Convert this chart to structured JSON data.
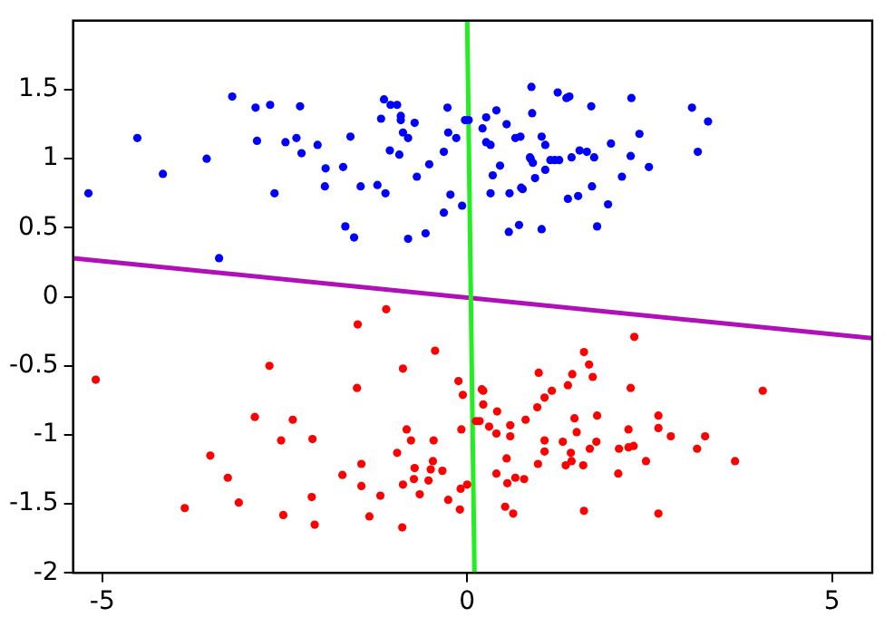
{
  "chart_data": {
    "type": "scatter",
    "xlim": [
      -5.4,
      5.55
    ],
    "ylim": [
      -2,
      2
    ],
    "xticks": [
      -5,
      0,
      5
    ],
    "yticks": [
      -2,
      -1.5,
      -1,
      -0.5,
      0,
      0.5,
      1,
      1.5
    ],
    "grid": false,
    "legend": false,
    "marker": "circle",
    "series": [
      {
        "color": "#0000ff",
        "x": [
          -5.19,
          -4.52,
          -4.17,
          -3.57,
          -3.4,
          -3.22,
          -2.9,
          -2.88,
          -2.7,
          -2.64,
          -2.49,
          -2.34,
          -2.29,
          -2.27,
          -2.05,
          -1.94,
          -1.95,
          -1.7,
          -1.67,
          -1.6,
          -1.55,
          -1.46,
          -1.23,
          -1.18,
          -1.14,
          -1.12,
          -1.06,
          -1.05,
          -0.96,
          -0.91,
          -0.91,
          -0.88,
          -0.81,
          -0.93,
          -0.81,
          -0.72,
          -0.69,
          -0.57,
          -0.52,
          -0.32,
          -0.32,
          -0.27,
          -0.26,
          -0.23,
          -0.15,
          -0.07,
          -0.03,
          0.02,
          0.26,
          0.4,
          0.21,
          0.54,
          0.26,
          0.32,
          0.66,
          0.73,
          0.88,
          0.89,
          1.02,
          1.07,
          0.45,
          0.35,
          0.32,
          0.58,
          0.74,
          0.76,
          0.86,
          0.9,
          0.87,
          0.93,
          1.07,
          1.14,
          1.2,
          1.26,
          1.24,
          1.36,
          1.4,
          1.43,
          1.54,
          1.64,
          1.7,
          1.74,
          1.71,
          1.38,
          1.52,
          0.57,
          0.71,
          1.02,
          1.78,
          1.93,
          1.97,
          2.12,
          2.24,
          2.25,
          2.36,
          2.49,
          3.08,
          3.3,
          3.16
        ],
        "values": [
          0.75,
          1.15,
          0.89,
          1.0,
          0.28,
          1.45,
          1.37,
          1.13,
          1.39,
          0.75,
          1.12,
          1.15,
          1.38,
          1.04,
          1.1,
          0.93,
          0.8,
          0.94,
          0.51,
          1.16,
          0.43,
          0.8,
          0.81,
          1.29,
          1.43,
          0.75,
          1.06,
          1.39,
          1.39,
          1.31,
          1.28,
          1.19,
          1.15,
          1.03,
          0.42,
          1.26,
          0.87,
          0.46,
          0.96,
          1.05,
          0.61,
          1.37,
          1.19,
          0.74,
          1.15,
          0.66,
          1.28,
          1.28,
          1.3,
          1.35,
          1.22,
          1.25,
          1.12,
          1.1,
          1.15,
          1.16,
          1.52,
          1.33,
          1.16,
          1.1,
          0.95,
          0.88,
          0.75,
          0.75,
          0.79,
          0.78,
          1.01,
          0.97,
          1.0,
          0.86,
          0.92,
          0.99,
          0.99,
          0.99,
          1.48,
          1.44,
          1.45,
          1.01,
          1.06,
          1.05,
          1.38,
          1.01,
          0.8,
          0.71,
          0.73,
          0.47,
          0.52,
          0.49,
          0.51,
          0.67,
          1.11,
          0.87,
          1.02,
          1.44,
          1.18,
          0.94,
          1.37,
          1.27,
          1.05
        ]
      },
      {
        "color": "#ff0000",
        "x": [
          -5.09,
          -3.87,
          -3.52,
          -3.28,
          -3.13,
          -2.91,
          -2.71,
          -2.55,
          -2.52,
          -2.39,
          -2.12,
          -2.13,
          -2.09,
          -1.71,
          -1.51,
          -1.5,
          -1.45,
          -1.45,
          -1.34,
          -1.19,
          -1.11,
          -0.96,
          -0.88,
          -0.83,
          -0.88,
          -0.89,
          -0.77,
          -0.72,
          -0.73,
          -0.65,
          -0.53,
          -0.5,
          -0.47,
          -0.46,
          -0.44,
          -0.34,
          -0.26,
          -0.12,
          -0.06,
          -0.08,
          -0.09,
          -0.1,
          0.0,
          0.2,
          0.22,
          0.22,
          0.12,
          0.17,
          0.3,
          0.41,
          0.4,
          0.59,
          0.59,
          0.54,
          0.4,
          0.55,
          0.66,
          0.78,
          0.52,
          0.63,
          0.8,
          0.96,
          0.98,
          1.06,
          1.16,
          1.06,
          1.06,
          0.97,
          1.31,
          1.35,
          1.42,
          1.43,
          1.38,
          1.44,
          1.47,
          1.5,
          1.6,
          1.67,
          1.72,
          1.59,
          1.68,
          1.77,
          1.78,
          1.6,
          2.07,
          2.08,
          2.21,
          2.28,
          2.21,
          2.24,
          2.29,
          2.45,
          2.62,
          2.62,
          2.62,
          2.79,
          3.15,
          3.26,
          3.67,
          4.05
        ],
        "values": [
          -0.6,
          -1.53,
          -1.15,
          -1.31,
          -1.49,
          -0.87,
          -0.5,
          -1.04,
          -1.58,
          -0.89,
          -1.03,
          -1.45,
          -1.65,
          -1.29,
          -0.66,
          -0.2,
          -1.21,
          -1.37,
          -1.59,
          -1.44,
          -0.09,
          -1.13,
          -0.52,
          -0.96,
          -1.36,
          -1.67,
          -1.04,
          -1.24,
          -1.32,
          -1.43,
          -1.33,
          -1.25,
          -1.19,
          -1.04,
          -0.39,
          -1.26,
          -1.47,
          -0.61,
          -0.71,
          -0.96,
          -1.39,
          -1.54,
          -1.36,
          -0.67,
          -0.68,
          -0.78,
          -0.9,
          -0.9,
          -0.94,
          -0.83,
          -0.99,
          -0.93,
          -1.01,
          -1.17,
          -1.28,
          -1.35,
          -1.31,
          -1.32,
          -1.52,
          -1.57,
          -0.89,
          -0.8,
          -0.55,
          -0.73,
          -0.68,
          -1.04,
          -1.12,
          -1.21,
          -1.05,
          -1.22,
          -1.13,
          -1.19,
          -0.64,
          -0.56,
          -0.88,
          -0.98,
          -0.4,
          -0.49,
          -0.58,
          -1.22,
          -1.1,
          -1.05,
          -0.86,
          -1.55,
          -1.28,
          -1.1,
          -1.09,
          -1.08,
          -0.96,
          -0.66,
          -0.29,
          -1.19,
          -0.86,
          -0.95,
          -1.57,
          -1.01,
          -1.1,
          -1.01,
          -1.19,
          -0.68
        ]
      },
      {
        "type": "line",
        "color": "#22ee22",
        "x": [
          0.0,
          0.1
        ],
        "values": [
          2,
          -2
        ],
        "marker": "none"
      },
      {
        "type": "line",
        "color": "#b010b8",
        "x": [
          -5.4,
          5.55
        ],
        "values": [
          0.28,
          -0.3
        ],
        "marker": "none"
      }
    ]
  }
}
